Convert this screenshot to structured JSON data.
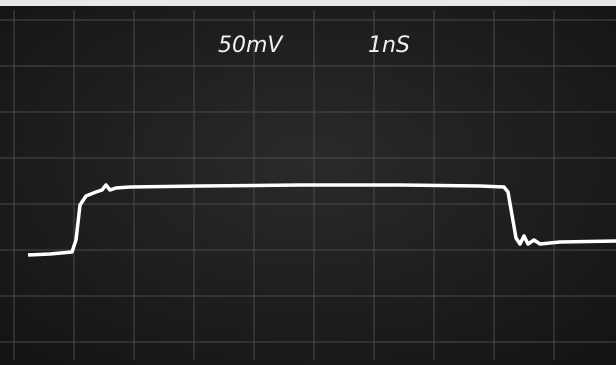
{
  "screen": {
    "volts_per_div": "50mV",
    "time_per_div": "1nS"
  }
}
